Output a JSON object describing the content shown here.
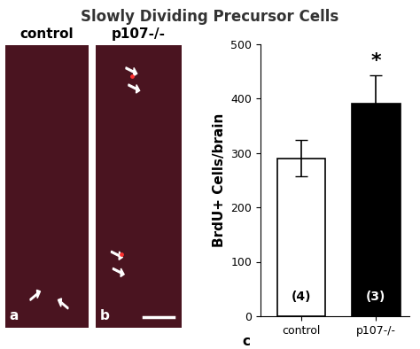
{
  "title": "Slowly Dividing Precursor Cells",
  "image_panels": [
    {
      "label": "control",
      "letter": "a"
    },
    {
      "label": "p107-/-",
      "letter": "b"
    }
  ],
  "chart_data": {
    "type": "bar",
    "annotations": [
      "c"
    ],
    "y_label": "BrdU+ Cells/brain",
    "categories": [
      "control",
      "p107-/-"
    ],
    "values": [
      290,
      390
    ],
    "errors": [
      33,
      52
    ],
    "colors": [
      "#ffffff",
      "#000000"
    ],
    "n_labels": [
      "(4)",
      "(3)"
    ],
    "significance": [
      null,
      "*"
    ],
    "ylim": [
      0,
      500
    ],
    "yticks": [
      0,
      100,
      200,
      300,
      400,
      500
    ],
    "grid": false
  }
}
